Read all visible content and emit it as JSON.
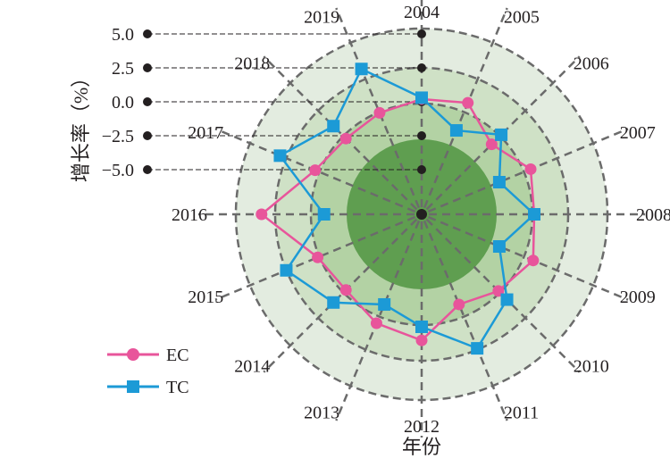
{
  "chart_data": {
    "type": "radar",
    "ylabel": "增长率（%）",
    "xlabel": "年份",
    "radial_ticks": [
      "5.0",
      "2.5",
      "0.0",
      "−2.5",
      "−5.0"
    ],
    "radial_tick_values": [
      5.0,
      2.5,
      0.0,
      -2.5,
      -5.0
    ],
    "rlim": [
      -5.0,
      5.0
    ],
    "categories": [
      "2004",
      "2005",
      "2006",
      "2007",
      "2008",
      "2009",
      "2010",
      "2011",
      "2012",
      "2013",
      "2014",
      "2015",
      "2016",
      "2017",
      "2018",
      "2019"
    ],
    "grid": true,
    "legend_position": "bottom-left",
    "series": [
      {
        "name": "EC",
        "color": "#e8559b",
        "marker": "circle",
        "values": [
          0.2,
          0.6,
          -1.0,
          0.4,
          0.0,
          0.6,
          -0.3,
          -1.1,
          1.0,
          0.4,
          -0.4,
          0.0,
          3.5,
          0.2,
          -0.4,
          -0.2
        ]
      },
      {
        "name": "TC",
        "color": "#1c9ad6",
        "marker": "square",
        "values": [
          0.3,
          -1.6,
          0.0,
          -2.1,
          0.0,
          -2.1,
          0.6,
          2.4,
          0.0,
          -1.1,
          0.9,
          2.5,
          -1.1,
          3.0,
          0.9,
          3.3
        ]
      }
    ]
  },
  "colors": {
    "ring_outer": "#e3ece0",
    "ring_2": "#cfe1c6",
    "ring_3": "#b3d2a4",
    "ring_inner": "#5f9e50",
    "grid_line": "#6b6b6b"
  }
}
